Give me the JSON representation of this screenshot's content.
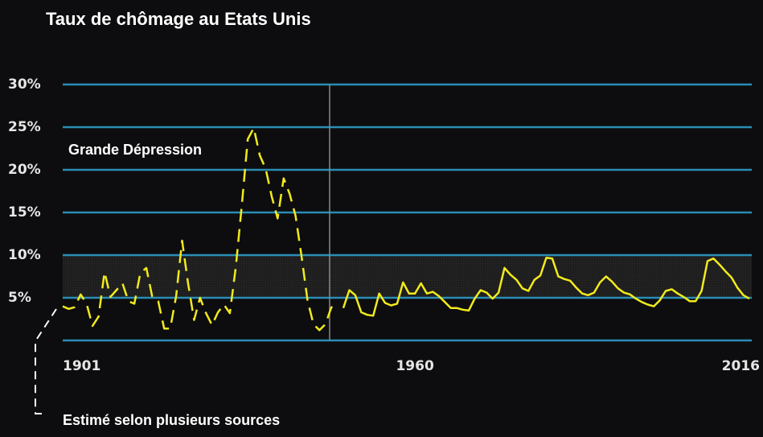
{
  "chart_data": {
    "type": "line",
    "title": "Taux de chômage au Etats Unis",
    "annotations": [
      "Grande Dépression",
      "Estimé selon plusieurs sources"
    ],
    "xlim": [
      1901,
      2016
    ],
    "xticks": [
      1901,
      1960,
      2016
    ],
    "ylim": [
      0,
      30
    ],
    "yticks": [
      {
        "value": 5,
        "label": "5%"
      },
      {
        "value": 10,
        "label": "10%"
      },
      {
        "value": 15,
        "label": "15%"
      },
      {
        "value": 20,
        "label": "20%"
      },
      {
        "value": 25,
        "label": "25%"
      },
      {
        "value": 30,
        "label": "30%"
      }
    ],
    "grid": true,
    "grid_color": "#2a8db5",
    "shaded_range": [
      5,
      10
    ],
    "series": [
      {
        "color": "#f2ea1c",
        "dashed": true,
        "x": [
          1901,
          1902,
          1903,
          1904,
          1905,
          1906,
          1907,
          1908,
          1909,
          1910,
          1911,
          1912,
          1913,
          1914,
          1915,
          1916,
          1917,
          1918,
          1919,
          1920,
          1921,
          1922,
          1923,
          1924,
          1925,
          1926,
          1927,
          1928,
          1929,
          1930,
          1931,
          1932,
          1933,
          1934,
          1935,
          1936,
          1937,
          1938,
          1939,
          1940,
          1941,
          1942,
          1943,
          1944,
          1945,
          1946,
          1947
        ],
        "values": [
          4.0,
          3.7,
          3.9,
          5.4,
          4.3,
          1.7,
          2.8,
          8.0,
          5.1,
          5.9,
          6.7,
          4.6,
          4.3,
          7.9,
          8.5,
          5.1,
          4.6,
          1.4,
          1.4,
          5.2,
          11.7,
          6.7,
          2.4,
          5.0,
          3.2,
          1.8,
          3.3,
          4.2,
          3.2,
          8.7,
          15.9,
          23.6,
          24.9,
          21.7,
          20.1,
          16.9,
          14.3,
          19.0,
          17.2,
          14.6,
          9.9,
          4.7,
          1.9,
          1.2,
          1.9,
          3.9,
          3.9
        ]
      },
      {
        "color": "#f2ea1c",
        "dashed": false,
        "x": [
          1948,
          1949,
          1950,
          1951,
          1952,
          1953,
          1954,
          1955,
          1956,
          1957,
          1958,
          1959,
          1960,
          1961,
          1962,
          1963,
          1964,
          1965,
          1966,
          1967,
          1968,
          1969,
          1970,
          1971,
          1972,
          1973,
          1974,
          1975,
          1976,
          1977,
          1978,
          1979,
          1980,
          1981,
          1982,
          1983,
          1984,
          1985,
          1986,
          1987,
          1988,
          1989,
          1990,
          1991,
          1992,
          1993,
          1994,
          1995,
          1996,
          1997,
          1998,
          1999,
          2000,
          2001,
          2002,
          2003,
          2004,
          2005,
          2006,
          2007,
          2008,
          2009,
          2010,
          2011,
          2012,
          2013,
          2014,
          2015,
          2016
        ],
        "values": [
          3.8,
          5.9,
          5.3,
          3.3,
          3.0,
          2.9,
          5.5,
          4.4,
          4.1,
          4.3,
          6.8,
          5.5,
          5.5,
          6.7,
          5.5,
          5.7,
          5.2,
          4.5,
          3.8,
          3.8,
          3.6,
          3.5,
          4.9,
          5.9,
          5.6,
          4.9,
          5.6,
          8.5,
          7.7,
          7.1,
          6.1,
          5.8,
          7.1,
          7.6,
          9.7,
          9.6,
          7.5,
          7.2,
          7.0,
          6.2,
          5.5,
          5.3,
          5.6,
          6.8,
          7.5,
          6.9,
          6.1,
          5.6,
          5.4,
          4.9,
          4.5,
          4.2,
          4.0,
          4.7,
          5.8,
          6.0,
          5.5,
          5.1,
          4.6,
          4.6,
          5.8,
          9.3,
          9.6,
          8.9,
          8.1,
          7.4,
          6.2,
          5.3,
          4.9
        ]
      }
    ]
  }
}
